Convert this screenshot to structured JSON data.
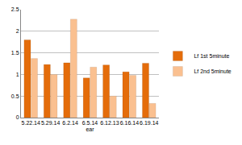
{
  "chart_data": {
    "type": "bar",
    "xlabel": "ear",
    "categories": [
      "5.22.14",
      "5.29.14",
      "6.2.14",
      "6.5.14",
      "6.12.13",
      "6.16.14",
      "6.19.14"
    ],
    "series": [
      {
        "name": "Lf 1st 5minute",
        "color": "#e46c0a",
        "values": [
          1.8,
          1.23,
          1.27,
          0.92,
          1.22,
          1.06,
          1.26
        ]
      },
      {
        "name": "Lf 2nd 5minute",
        "color": "#fac090",
        "values": [
          1.37,
          1.0,
          2.28,
          1.17,
          0.5,
          0.98,
          0.33
        ]
      }
    ],
    "ylim": [
      0,
      2.5
    ],
    "yticks": [
      0,
      0.5,
      1,
      1.5,
      2,
      2.5
    ],
    "grid": true,
    "legend": "right"
  }
}
